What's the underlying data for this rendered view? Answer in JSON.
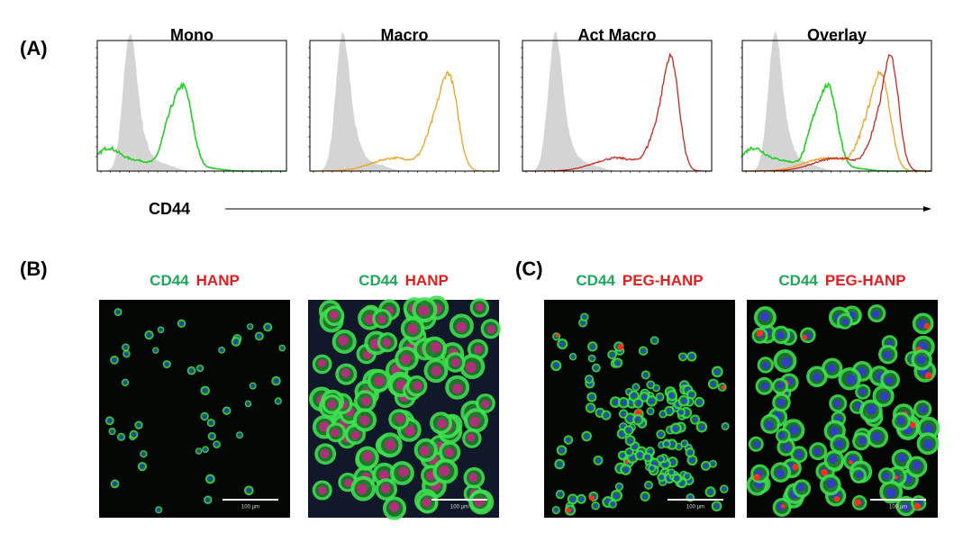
{
  "panel_a": {
    "label": "(A)",
    "histograms": [
      {
        "title": "Mono"
      },
      {
        "title": "Macro"
      },
      {
        "title": "Act Macro"
      },
      {
        "title": "Overlay"
      }
    ],
    "axis_label": "CD44"
  },
  "panel_b": {
    "label": "(B)",
    "images": [
      {
        "stain_1": "CD44",
        "stain_2": "HANP",
        "scale_bar": "100 µm"
      },
      {
        "stain_1": "CD44",
        "stain_2": "HANP",
        "scale_bar": "100 µm"
      }
    ]
  },
  "panel_c": {
    "label": "(C)",
    "images": [
      {
        "stain_1": "CD44",
        "stain_2": "PEG-HANP",
        "scale_bar": "100 µm"
      },
      {
        "stain_1": "CD44",
        "stain_2": "PEG-HANP",
        "scale_bar": "100 µm"
      }
    ]
  }
}
